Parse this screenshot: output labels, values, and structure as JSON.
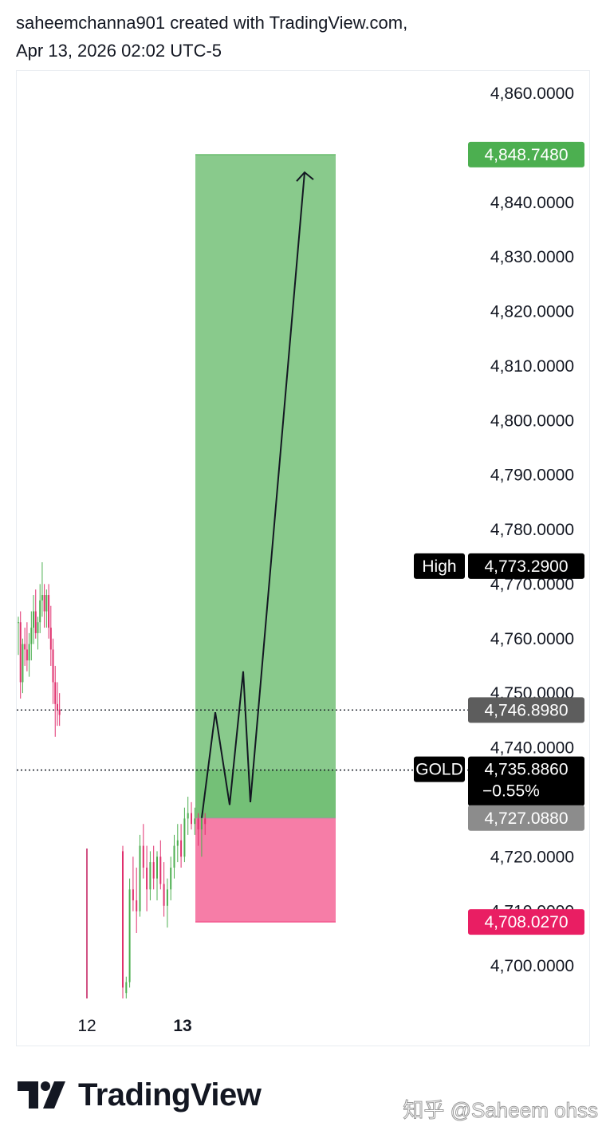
{
  "header": {
    "line1": "saheemchanna901 created with TradingView.com,",
    "line2": "Apr 13, 2026 02:02 UTC-5"
  },
  "chart_data": {
    "type": "candlestick",
    "symbol": "GOLD",
    "y_range": [
      4694,
      4862
    ],
    "y_ticks": [
      "4,860.0000",
      "4,850.0000",
      "4,840.0000",
      "4,830.0000",
      "4,820.0000",
      "4,810.0000",
      "4,800.0000",
      "4,790.0000",
      "4,780.0000",
      "4,770.0000",
      "4,760.0000",
      "4,750.0000",
      "4,740.0000",
      "4,730.0000",
      "4,720.0000",
      "4,710.0000",
      "4,700.0000"
    ],
    "x_labels": [
      {
        "text": "12",
        "bold": false
      },
      {
        "text": "13",
        "bold": true
      }
    ],
    "price_tags": [
      {
        "label": "",
        "value": "4,848.7480",
        "price": 4848.748,
        "color": "#4caf50"
      },
      {
        "label": "High",
        "value": "4,773.2900",
        "price": 4773.29,
        "color": "#000000"
      },
      {
        "label": "",
        "value": "4,746.8980",
        "price": 4746.898,
        "color": "#5d5d5d"
      },
      {
        "label": "GOLD",
        "value": "4,735.8860",
        "change": "−0.55%",
        "price": 4735.886,
        "color": "#000000"
      },
      {
        "label": "",
        "value": "4,727.0880",
        "price": 4727.088,
        "color": "#8c8c8c"
      },
      {
        "label": "",
        "value": "4,708.0270",
        "price": 4708.027,
        "color": "#e91e63"
      }
    ],
    "dotted_lines": [
      4746.898,
      4735.886
    ],
    "position_tool": {
      "entry": 4727.088,
      "target": 4848.748,
      "stop": 4708.027,
      "profit_color": "#4caf50",
      "loss_color": "#f23a7a"
    },
    "projection_path": [
      4727.088,
      4746.5,
      4729.5,
      4754.0,
      4730.0,
      4845.5
    ],
    "candles": [
      [
        4763,
        4764,
        4757,
        4763
      ],
      [
        4763,
        4765,
        4749,
        4752
      ],
      [
        4752,
        4760,
        4750,
        4759
      ],
      [
        4759,
        4762,
        4755,
        4758
      ],
      [
        4758,
        4763,
        4754,
        4756
      ],
      [
        4756,
        4761,
        4753,
        4759
      ],
      [
        4759,
        4765,
        4756,
        4762
      ],
      [
        4762,
        4768,
        4759,
        4765
      ],
      [
        4765,
        4769,
        4760,
        4761
      ],
      [
        4761,
        4764,
        4758,
        4763
      ],
      [
        4763,
        4770,
        4761,
        4767
      ],
      [
        4767,
        4774,
        4764,
        4768
      ],
      [
        4768,
        4770,
        4762,
        4765
      ],
      [
        4765,
        4769,
        4762,
        4768
      ],
      [
        4768,
        4770,
        4760,
        4762
      ],
      [
        4762,
        4766,
        4755,
        4758
      ],
      [
        4758,
        4760,
        4748,
        4752
      ],
      [
        4752,
        4755,
        4742,
        4748
      ],
      [
        4748,
        4752,
        4744,
        4747
      ],
      [
        4747,
        4750,
        4744,
        4746
      ],
      [
        4721,
        4722,
        4694,
        4696
      ],
      [
        4695,
        4698,
        4694,
        4697
      ],
      [
        4697,
        4716,
        4696,
        4714
      ],
      [
        4714,
        4720,
        4710,
        4712
      ],
      [
        4712,
        4718,
        4706,
        4710
      ],
      [
        4710,
        4724,
        4709,
        4722
      ],
      [
        4722,
        4726,
        4716,
        4718
      ],
      [
        4718,
        4722,
        4710,
        4714
      ],
      [
        4714,
        4721,
        4712,
        4719
      ],
      [
        4719,
        4722,
        4714,
        4716
      ],
      [
        4716,
        4721,
        4712,
        4720
      ],
      [
        4720,
        4723,
        4714,
        4715
      ],
      [
        4715,
        4719,
        4709,
        4711
      ],
      [
        4711,
        4716,
        4707,
        4714
      ],
      [
        4714,
        4720,
        4712,
        4718
      ],
      [
        4718,
        4724,
        4716,
        4722
      ],
      [
        4722,
        4726,
        4719,
        4723
      ],
      [
        4723,
        4726,
        4718,
        4720
      ],
      [
        4720,
        4729,
        4719,
        4727
      ],
      [
        4727,
        4731,
        4724,
        4728
      ],
      [
        4728,
        4730,
        4725,
        4726
      ],
      [
        4726,
        4729,
        4724,
        4727
      ],
      [
        4727,
        4728,
        4722,
        4725
      ],
      [
        4725,
        4728,
        4720,
        4727
      ],
      [
        4727,
        4728,
        4724,
        4726
      ]
    ]
  },
  "footer": {
    "logo_text": "TradingView",
    "watermark": "知乎 @Saheem ohss"
  }
}
